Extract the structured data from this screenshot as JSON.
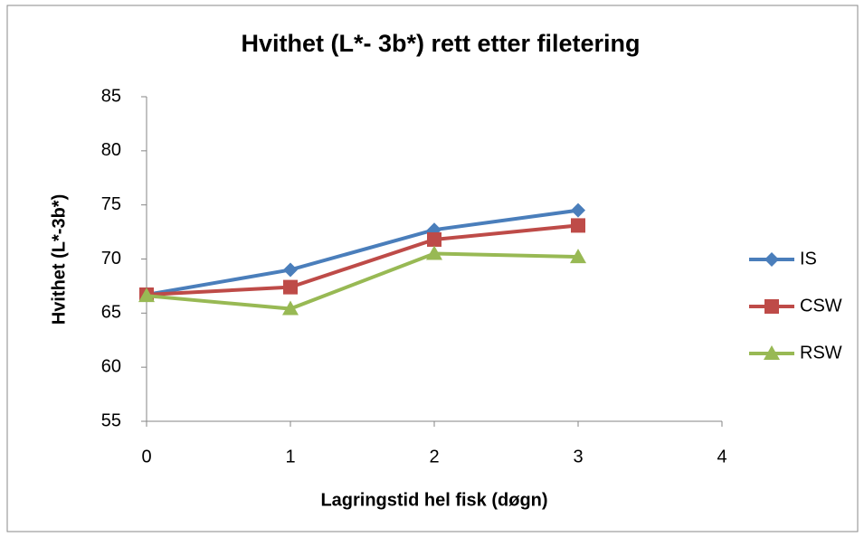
{
  "chart_data": {
    "type": "line",
    "title": "Hvithet (L*- 3b*) rett etter filetering",
    "x_label": "Lagringstid hel fisk (døgn)",
    "y_label": "Hvithet (L*-3b*)",
    "x": [
      0,
      1,
      2,
      3
    ],
    "series": [
      {
        "name": "IS",
        "color": "#4a7ebb",
        "marker": "diamond",
        "values": [
          66.7,
          69.0,
          72.7,
          74.5
        ]
      },
      {
        "name": "CSW",
        "color": "#be4b48",
        "marker": "square",
        "values": [
          66.7,
          67.4,
          71.8,
          73.1
        ]
      },
      {
        "name": "RSW",
        "color": "#98b954",
        "marker": "triangle",
        "values": [
          66.6,
          65.4,
          70.5,
          70.2
        ]
      }
    ],
    "xlim": [
      0,
      4
    ],
    "xticks": [
      0,
      1,
      2,
      3,
      4
    ],
    "ylim": [
      55,
      85
    ],
    "yticks": [
      55,
      60,
      65,
      70,
      75,
      80,
      85
    ],
    "grid": false,
    "legend": "right"
  }
}
